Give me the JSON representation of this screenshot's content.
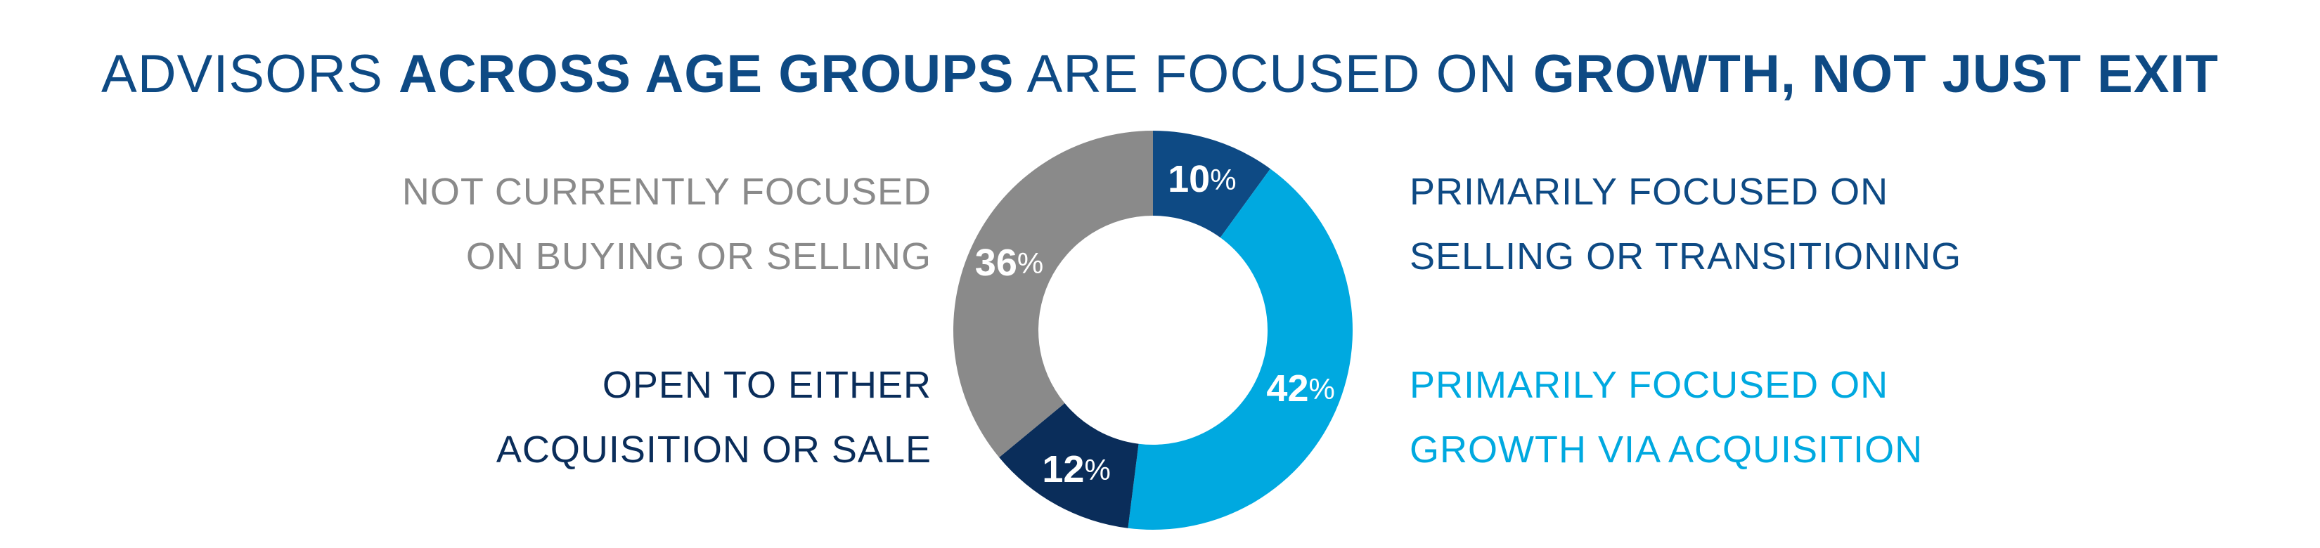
{
  "title": {
    "part1": "ADVISORS ",
    "part2": "ACROSS AGE GROUPS",
    "part3": " ARE FOCUSED ON ",
    "part4": "GROWTH, NOT JUST EXIT"
  },
  "legend": {
    "not_focused": [
      "NOT CURRENTLY FOCUSED",
      "ON BUYING OR SELLING"
    ],
    "open_either": [
      "OPEN TO EITHER",
      "ACQUISITION OR SALE"
    ],
    "selling": [
      "PRIMARILY FOCUSED ON",
      "SELLING OR TRANSITIONING"
    ],
    "growth": [
      "PRIMARILY FOCUSED ON",
      "GROWTH VIA ACQUISITION"
    ]
  },
  "chart_data": {
    "type": "pie",
    "donut": true,
    "title": "ADVISORS ACROSS AGE GROUPS ARE FOCUSED ON GROWTH, NOT JUST EXIT",
    "slices": [
      {
        "label": "PRIMARILY FOCUSED ON SELLING OR TRANSITIONING",
        "value": 10,
        "display": "10",
        "color": "#0e4a84"
      },
      {
        "label": "PRIMARILY FOCUSED ON GROWTH VIA ACQUISITION",
        "value": 42,
        "display": "42",
        "color": "#00a9e0"
      },
      {
        "label": "OPEN TO EITHER ACQUISITION OR SALE",
        "value": 12,
        "display": "12",
        "color": "#0a2d5a"
      },
      {
        "label": "NOT CURRENTLY FOCUSED ON BUYING OR SELLING",
        "value": 36,
        "display": "36",
        "color": "#8a8a8a"
      }
    ],
    "percent_sign": "%",
    "legend_placement": "sides"
  }
}
